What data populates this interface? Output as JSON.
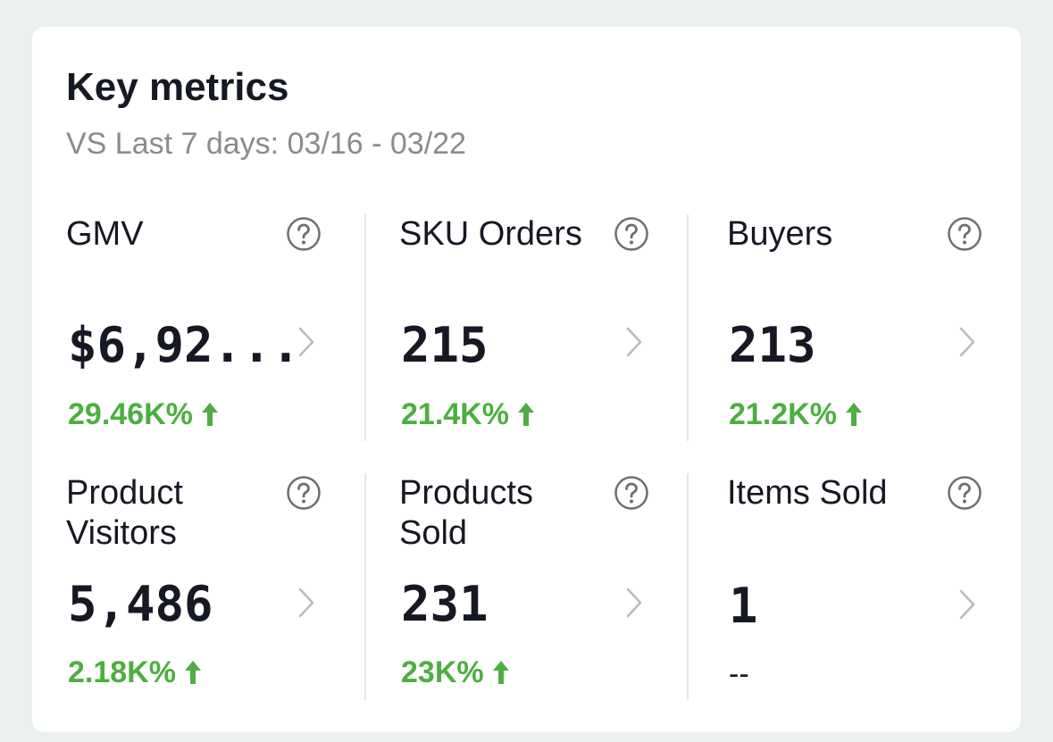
{
  "card": {
    "title": "Key metrics",
    "subtitle": "VS Last 7 days: 03/16 - 03/22"
  },
  "metrics": [
    {
      "label": "GMV",
      "value": "$6,92...",
      "change": "29.46K%",
      "trend": "up"
    },
    {
      "label": "SKU Orders",
      "value": "215",
      "change": "21.4K%",
      "trend": "up"
    },
    {
      "label": "Buyers",
      "value": "213",
      "change": "21.2K%",
      "trend": "up"
    },
    {
      "label": "Product Visitors",
      "value": "5,486",
      "change": "2.18K%",
      "trend": "up"
    },
    {
      "label": "Products Sold",
      "value": "231",
      "change": "23K%",
      "trend": "up"
    },
    {
      "label": "Items Sold",
      "value": "1",
      "change": "--",
      "trend": "none"
    }
  ],
  "colors": {
    "positive": "#4caf3f",
    "text": "#161823",
    "muted": "#8a8b91"
  },
  "icons": {
    "help": "question-circle-icon",
    "chevron": "chevron-right-icon",
    "trend_up": "arrow-up-icon"
  }
}
